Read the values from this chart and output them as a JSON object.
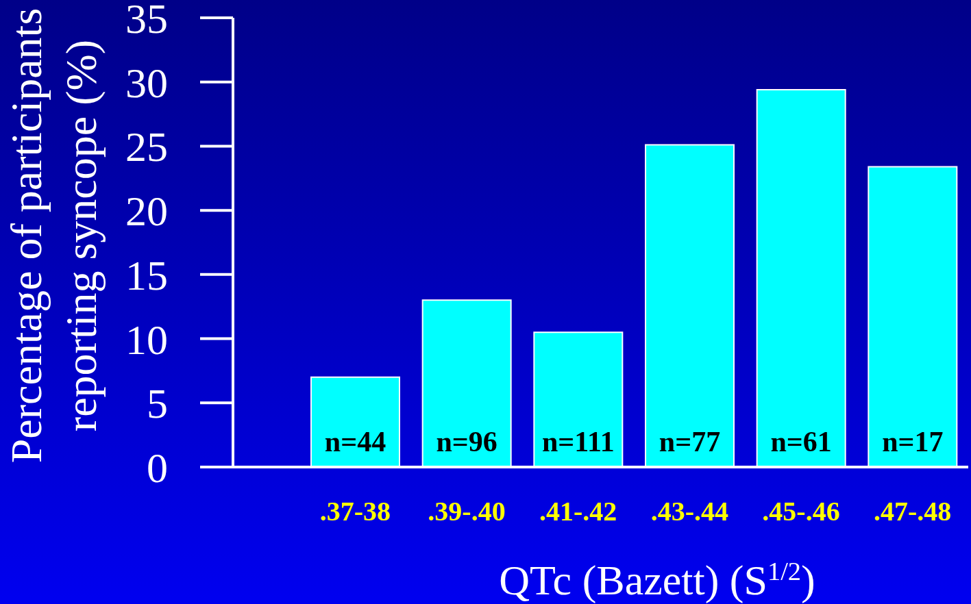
{
  "chart_data": {
    "type": "bar",
    "categories": [
      ".37-38",
      ".39-.40",
      ".41-.42",
      ".43-.44",
      ".45-.46",
      ".47-.48"
    ],
    "values": [
      7.0,
      13.0,
      10.5,
      25.1,
      29.4,
      23.4
    ],
    "color": "#00ffff",
    "ylim": [
      0,
      35
    ],
    "yticks": [
      0,
      5,
      10,
      15,
      20,
      25,
      30,
      35
    ],
    "xlabel": "QTc (Bazett) (S$^{1/2}$)",
    "ylabel": "Percentage of participants\nreporting syncope (%)",
    "annotations": [
      "n=44",
      "n=96",
      "n=111",
      "n=77",
      "n=61",
      "n=17"
    ]
  }
}
